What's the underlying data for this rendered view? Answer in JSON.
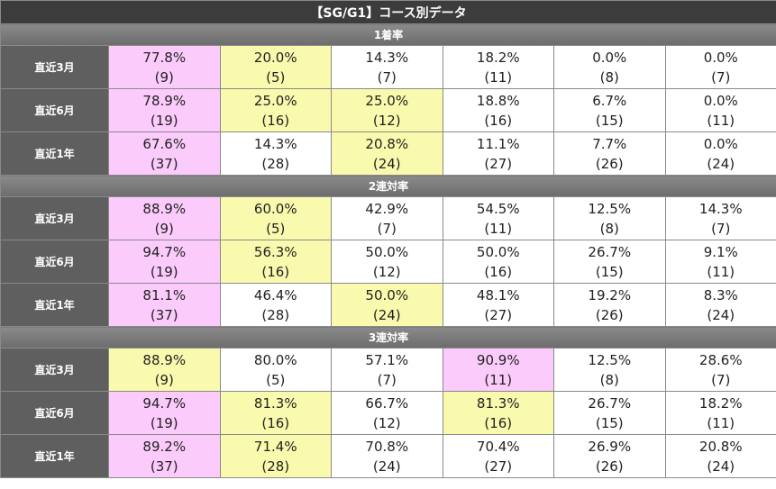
{
  "title": "【SG/G1】コース別データ",
  "sections": [
    {
      "name": "1着率",
      "rows": [
        {
          "label": "直近3月",
          "cells": [
            {
              "value": "77.8%",
              "count": "(9)",
              "highlight": "pink"
            },
            {
              "value": "20.0%",
              "count": "(5)",
              "highlight": "yellow"
            },
            {
              "value": "14.3%",
              "count": "(7)",
              "highlight": "none"
            },
            {
              "value": "18.2%",
              "count": "(11)",
              "highlight": "none"
            },
            {
              "value": "0.0%",
              "count": "(8)",
              "highlight": "none"
            },
            {
              "value": "0.0%",
              "count": "(7)",
              "highlight": "none"
            }
          ]
        },
        {
          "label": "直近6月",
          "cells": [
            {
              "value": "78.9%",
              "count": "(19)",
              "highlight": "pink"
            },
            {
              "value": "25.0%",
              "count": "(16)",
              "highlight": "yellow"
            },
            {
              "value": "25.0%",
              "count": "(12)",
              "highlight": "yellow"
            },
            {
              "value": "18.8%",
              "count": "(16)",
              "highlight": "none"
            },
            {
              "value": "6.7%",
              "count": "(15)",
              "highlight": "none"
            },
            {
              "value": "0.0%",
              "count": "(11)",
              "highlight": "none"
            }
          ]
        },
        {
          "label": "直近1年",
          "cells": [
            {
              "value": "67.6%",
              "count": "(37)",
              "highlight": "pink"
            },
            {
              "value": "14.3%",
              "count": "(28)",
              "highlight": "none"
            },
            {
              "value": "20.8%",
              "count": "(24)",
              "highlight": "yellow"
            },
            {
              "value": "11.1%",
              "count": "(27)",
              "highlight": "none"
            },
            {
              "value": "7.7%",
              "count": "(26)",
              "highlight": "none"
            },
            {
              "value": "0.0%",
              "count": "(24)",
              "highlight": "none"
            }
          ]
        }
      ]
    },
    {
      "name": "2連対率",
      "rows": [
        {
          "label": "直近3月",
          "cells": [
            {
              "value": "88.9%",
              "count": "(9)",
              "highlight": "pink"
            },
            {
              "value": "60.0%",
              "count": "(5)",
              "highlight": "yellow"
            },
            {
              "value": "42.9%",
              "count": "(7)",
              "highlight": "none"
            },
            {
              "value": "54.5%",
              "count": "(11)",
              "highlight": "none"
            },
            {
              "value": "12.5%",
              "count": "(8)",
              "highlight": "none"
            },
            {
              "value": "14.3%",
              "count": "(7)",
              "highlight": "none"
            }
          ]
        },
        {
          "label": "直近6月",
          "cells": [
            {
              "value": "94.7%",
              "count": "(19)",
              "highlight": "pink"
            },
            {
              "value": "56.3%",
              "count": "(16)",
              "highlight": "yellow"
            },
            {
              "value": "50.0%",
              "count": "(12)",
              "highlight": "none"
            },
            {
              "value": "50.0%",
              "count": "(16)",
              "highlight": "none"
            },
            {
              "value": "26.7%",
              "count": "(15)",
              "highlight": "none"
            },
            {
              "value": "9.1%",
              "count": "(11)",
              "highlight": "none"
            }
          ]
        },
        {
          "label": "直近1年",
          "cells": [
            {
              "value": "81.1%",
              "count": "(37)",
              "highlight": "pink"
            },
            {
              "value": "46.4%",
              "count": "(28)",
              "highlight": "none"
            },
            {
              "value": "50.0%",
              "count": "(24)",
              "highlight": "yellow"
            },
            {
              "value": "48.1%",
              "count": "(27)",
              "highlight": "none"
            },
            {
              "value": "19.2%",
              "count": "(26)",
              "highlight": "none"
            },
            {
              "value": "8.3%",
              "count": "(24)",
              "highlight": "none"
            }
          ]
        }
      ]
    },
    {
      "name": "3連対率",
      "rows": [
        {
          "label": "直近3月",
          "cells": [
            {
              "value": "88.9%",
              "count": "(9)",
              "highlight": "yellow"
            },
            {
              "value": "80.0%",
              "count": "(5)",
              "highlight": "none"
            },
            {
              "value": "57.1%",
              "count": "(7)",
              "highlight": "none"
            },
            {
              "value": "90.9%",
              "count": "(11)",
              "highlight": "pink"
            },
            {
              "value": "12.5%",
              "count": "(8)",
              "highlight": "none"
            },
            {
              "value": "28.6%",
              "count": "(7)",
              "highlight": "none"
            }
          ]
        },
        {
          "label": "直近6月",
          "cells": [
            {
              "value": "94.7%",
              "count": "(19)",
              "highlight": "pink"
            },
            {
              "value": "81.3%",
              "count": "(16)",
              "highlight": "yellow"
            },
            {
              "value": "66.7%",
              "count": "(12)",
              "highlight": "none"
            },
            {
              "value": "81.3%",
              "count": "(16)",
              "highlight": "yellow"
            },
            {
              "value": "26.7%",
              "count": "(15)",
              "highlight": "none"
            },
            {
              "value": "18.2%",
              "count": "(11)",
              "highlight": "none"
            }
          ]
        },
        {
          "label": "直近1年",
          "cells": [
            {
              "value": "89.2%",
              "count": "(37)",
              "highlight": "pink"
            },
            {
              "value": "71.4%",
              "count": "(28)",
              "highlight": "yellow"
            },
            {
              "value": "70.8%",
              "count": "(24)",
              "highlight": "none"
            },
            {
              "value": "70.4%",
              "count": "(27)",
              "highlight": "none"
            },
            {
              "value": "26.9%",
              "count": "(26)",
              "highlight": "none"
            },
            {
              "value": "20.8%",
              "count": "(24)",
              "highlight": "none"
            }
          ]
        }
      ]
    }
  ],
  "colors": {
    "highlight_top": "#fbcbfb",
    "highlight_second": "#fafaae",
    "title_bg": "#3c3c3c",
    "section_bg": "#7b7b7b",
    "rowhead_bg": "#5f5f5f"
  }
}
